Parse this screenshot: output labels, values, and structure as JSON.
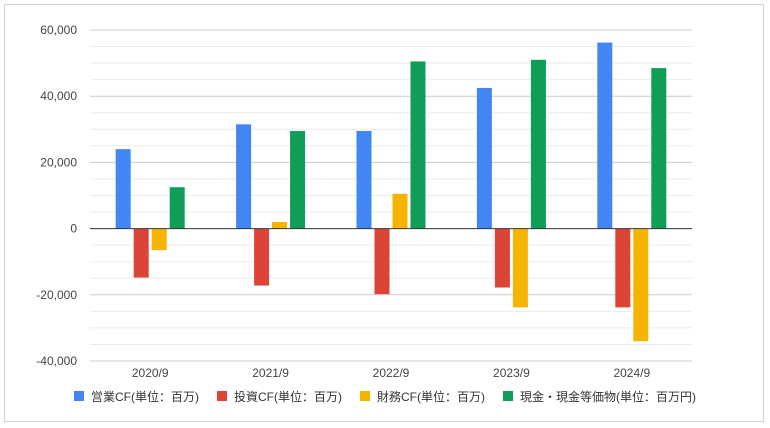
{
  "chart_data": {
    "type": "bar",
    "categories": [
      "2020/9",
      "2021/9",
      "2022/9",
      "2023/9",
      "2024/9"
    ],
    "series": [
      {
        "name": "営業CF(単位：百万)",
        "color": "#4285f4",
        "values": [
          24000,
          31500,
          29500,
          42500,
          56200
        ]
      },
      {
        "name": "投資CF(単位：百万)",
        "color": "#db4437",
        "values": [
          -14800,
          -17200,
          -19800,
          -17800,
          -23800
        ]
      },
      {
        "name": "財務CF(単位：百万)",
        "color": "#f4b400",
        "values": [
          -6500,
          2000,
          10500,
          -23800,
          -34000
        ]
      },
      {
        "name": "現金・現金等価物(単位：百万円)",
        "color": "#0f9d58",
        "values": [
          12500,
          29500,
          50500,
          51000,
          48500
        ]
      }
    ],
    "yticks": [
      "60,000",
      "40,000",
      "20,000",
      "0",
      "-20,000",
      "-40,000"
    ],
    "ylim": [
      -40000,
      60000
    ],
    "minor_grid_step": 5000,
    "legend_position": "bottom"
  }
}
